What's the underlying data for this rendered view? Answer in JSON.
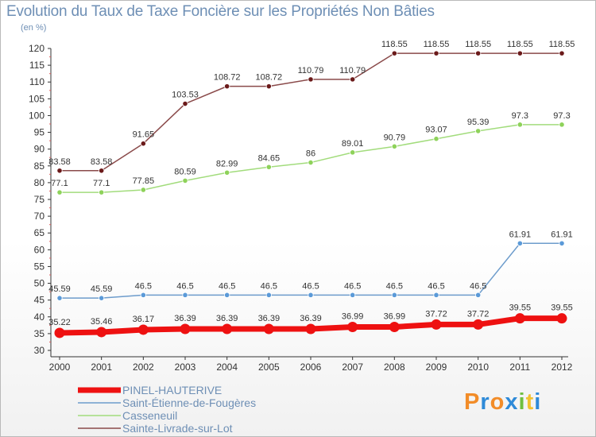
{
  "title": "Evolution du Taux de Taxe Foncière sur les Propriétés Non Bâties",
  "unit": "(en %)",
  "brand": {
    "letters": [
      "P",
      "r",
      "o",
      "x",
      "i",
      "t",
      "i"
    ],
    "colors": [
      "#f28c28",
      "#2e8ad8",
      "#f28c28",
      "#2e8ad8",
      "#6fbf3f",
      "#f2c230",
      "#2e8ad8"
    ]
  },
  "chart_data": {
    "type": "line",
    "x": [
      "2000",
      "2001",
      "2002",
      "2003",
      "2004",
      "2005",
      "2006",
      "2007",
      "2008",
      "2009",
      "2010",
      "2011",
      "2012"
    ],
    "ylim": [
      30,
      120
    ],
    "yticks": [
      30,
      35,
      40,
      45,
      50,
      55,
      60,
      65,
      70,
      75,
      80,
      85,
      90,
      95,
      100,
      105,
      110,
      115,
      120
    ],
    "grid": false,
    "legend_position": "bottom-left",
    "series": [
      {
        "name": "PINEL-HAUTERIVE",
        "color": "#ee1111",
        "marker": "#ee1111",
        "width": 7,
        "values": [
          35.22,
          35.46,
          36.17,
          36.39,
          36.39,
          36.39,
          36.39,
          36.99,
          36.99,
          37.72,
          37.72,
          39.55,
          39.55
        ],
        "labels": [
          "35.22",
          "35.46",
          "36.17",
          "36.39",
          "36.39",
          "36.39",
          "36.39",
          "36.99",
          "36.99",
          "37.72",
          "37.72",
          "39.55",
          "39.55"
        ]
      },
      {
        "name": "Saint-Étienne-de-Fougères",
        "color": "#6d9ccc",
        "marker": "#5b9ad8",
        "width": 1.5,
        "values": [
          45.59,
          45.59,
          46.5,
          46.5,
          46.5,
          46.5,
          46.5,
          46.5,
          46.5,
          46.5,
          46.5,
          61.91,
          61.91
        ],
        "labels": [
          "45.59",
          "45.59",
          "46.5",
          "46.5",
          "46.5",
          "46.5",
          "46.5",
          "46.5",
          "46.5",
          "46.5",
          "46.5",
          "61.91",
          "61.91"
        ]
      },
      {
        "name": "Casseneuil",
        "color": "#a2dc7c",
        "marker": "#8ed25a",
        "width": 1.5,
        "values": [
          77.1,
          77.1,
          77.85,
          80.59,
          82.99,
          84.65,
          86,
          89.01,
          90.79,
          93.07,
          95.39,
          97.3,
          97.3
        ],
        "labels": [
          "77.1",
          "77.1",
          "77.85",
          "80.59",
          "82.99",
          "84.65",
          "86",
          "89.01",
          "90.79",
          "93.07",
          "95.39",
          "97.3",
          "97.3"
        ]
      },
      {
        "name": "Sainte-Livrade-sur-Lot",
        "color": "#8a4a4a",
        "marker": "#6b1a1a",
        "width": 1.5,
        "values": [
          83.58,
          83.58,
          91.65,
          103.53,
          108.72,
          108.72,
          110.79,
          110.79,
          118.55,
          118.55,
          118.55,
          118.55,
          118.55
        ],
        "labels": [
          "83.58",
          "83.58",
          "91.65",
          "103.53",
          "108.72",
          "108.72",
          "110.79",
          "110.79",
          "118.55",
          "118.55",
          "118.55",
          "118.55",
          "118.55"
        ]
      }
    ]
  }
}
